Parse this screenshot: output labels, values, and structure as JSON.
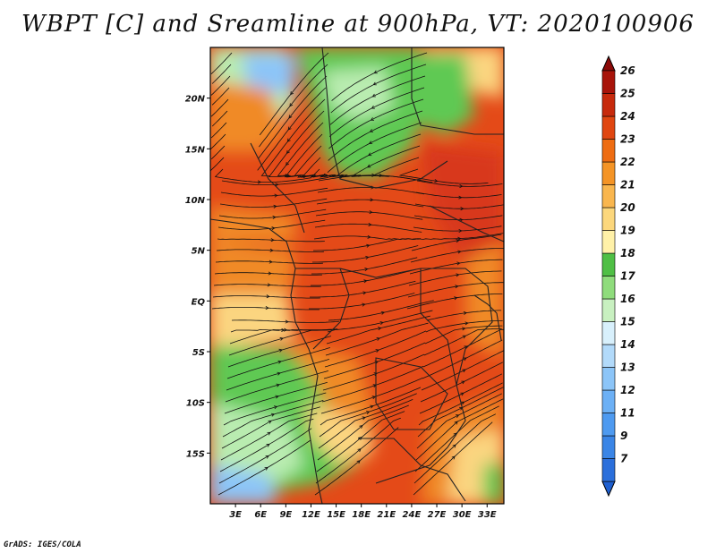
{
  "title": "WBPT [C] and Sreamline at 900hPa, VT: 2020100906",
  "credit": "GrADS: IGES/COLA",
  "map": {
    "lat_labels": [
      {
        "text": "20N",
        "lat": 20
      },
      {
        "text": "15N",
        "lat": 15
      },
      {
        "text": "10N",
        "lat": 10
      },
      {
        "text": "5N",
        "lat": 5
      },
      {
        "text": "EQ",
        "lat": 0
      },
      {
        "text": "5S",
        "lat": -5
      },
      {
        "text": "10S",
        "lat": -10
      },
      {
        "text": "15S",
        "lat": -15
      }
    ],
    "lon_labels": [
      {
        "text": "3E",
        "lon": 3
      },
      {
        "text": "6E",
        "lon": 6
      },
      {
        "text": "9E",
        "lon": 9
      },
      {
        "text": "12E",
        "lon": 12
      },
      {
        "text": "15E",
        "lon": 15
      },
      {
        "text": "18E",
        "lon": 18
      },
      {
        "text": "21E",
        "lon": 21
      },
      {
        "text": "24E",
        "lon": 24
      },
      {
        "text": "27E",
        "lon": 27
      },
      {
        "text": "30E",
        "lon": 30
      },
      {
        "text": "33E",
        "lon": 33
      }
    ],
    "lon_range": [
      0,
      35
    ],
    "lat_range": [
      -20,
      25
    ]
  },
  "colorbar": {
    "levels": [
      "7",
      "9",
      "11",
      "12",
      "13",
      "14",
      "15",
      "16",
      "17",
      "18",
      "19",
      "20",
      "21",
      "22",
      "23",
      "24",
      "25",
      "26"
    ],
    "colors": [
      "#2b6fdb",
      "#3a85e6",
      "#4e9af0",
      "#6cb0f5",
      "#8cc5f8",
      "#b2dafa",
      "#d8f0fc",
      "#c8f0c0",
      "#8fdc7c",
      "#4fbf45",
      "#fff1a8",
      "#fcd77c",
      "#f9b64e",
      "#f49426",
      "#ee6c12",
      "#e04610",
      "#c72a0c",
      "#a8140a"
    ],
    "low_arrow_color": "#1e5fd0",
    "high_arrow_color": "#8c0a08"
  },
  "colors": {
    "hot": "#d8371a",
    "warm": "#f08a26",
    "mild": "#fbd580",
    "green": "#5fc952",
    "lightgreen": "#b9ecb0",
    "blue": "#8cc5f8"
  }
}
